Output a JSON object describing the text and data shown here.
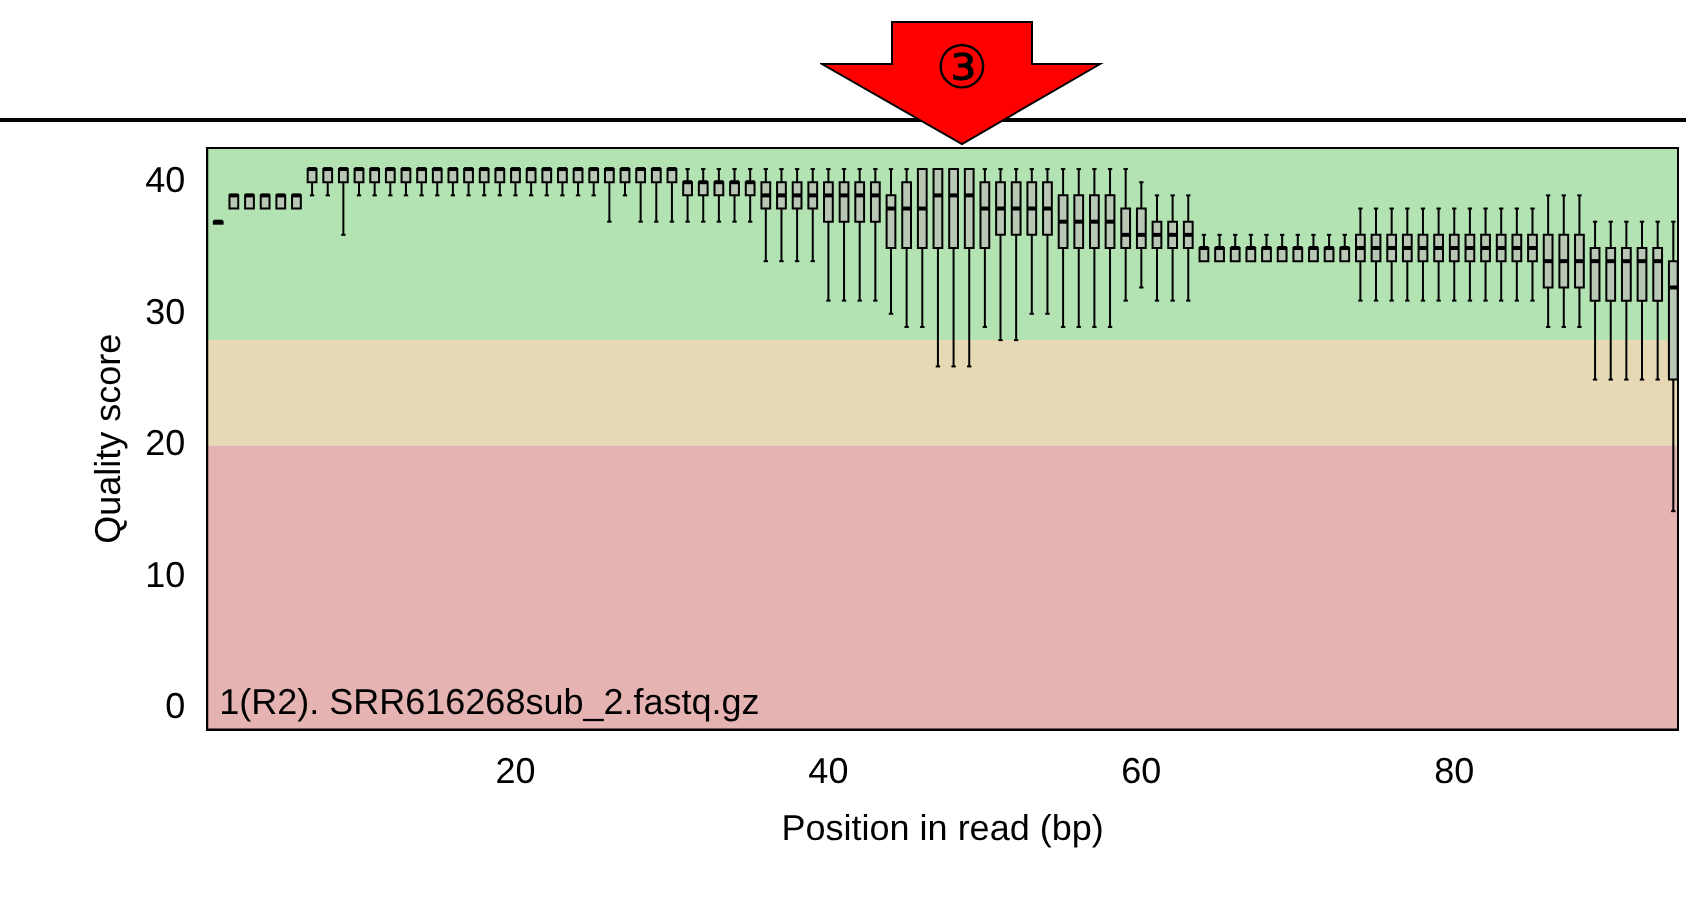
{
  "chart_data": {
    "type": "box",
    "xlabel": "Position in read (bp)",
    "ylabel": "Quality score",
    "annotations": [
      "③",
      "1(R2). SRR616268sub_2.fastq.gz"
    ],
    "x": [
      1,
      2,
      3,
      4,
      5,
      6,
      7,
      8,
      9,
      10,
      11,
      12,
      13,
      14,
      15,
      16,
      17,
      18,
      19,
      20,
      21,
      22,
      23,
      24,
      25,
      26,
      27,
      28,
      29,
      30,
      31,
      32,
      33,
      34,
      35,
      36,
      37,
      38,
      39,
      40,
      41,
      42,
      43,
      44,
      45,
      46,
      47,
      48,
      49,
      50,
      51,
      52,
      53,
      54,
      55,
      56,
      57,
      58,
      59,
      60,
      61,
      62,
      63,
      64,
      65,
      66,
      67,
      68,
      69,
      70,
      71,
      72,
      73,
      74,
      75,
      76,
      77,
      78,
      79,
      80,
      81,
      82,
      83,
      84,
      85,
      86,
      87,
      88,
      89,
      90,
      91,
      92,
      93,
      94
    ],
    "xlim": [
      0.3,
      94.3
    ],
    "xticks": [
      20,
      40,
      60,
      80
    ],
    "ylim": [
      -1.6,
      42.6
    ],
    "yticks": [
      0,
      10,
      20,
      30,
      40
    ],
    "grid": false,
    "legend": false,
    "bands": [
      {
        "axis": "y",
        "from": 28,
        "to": 42.6,
        "color": "#b3e3b3"
      },
      {
        "axis": "y",
        "from": 20,
        "to": 28,
        "color": "#e6d9b3"
      },
      {
        "axis": "y",
        "from": -1.6,
        "to": 20,
        "color": "#e6b3b3"
      }
    ],
    "series": [
      {
        "color": "#b8c8b4",
        "boxes": [
          {
            "low": 37,
            "q1": 37,
            "median": 37,
            "q3": 37,
            "high": 37
          },
          {
            "low": 38,
            "q1": 38,
            "median": 39,
            "q3": 39,
            "high": 39
          },
          {
            "low": 38,
            "q1": 38,
            "median": 39,
            "q3": 39,
            "high": 39
          },
          {
            "low": 38,
            "q1": 38,
            "median": 39,
            "q3": 39,
            "high": 39
          },
          {
            "low": 38,
            "q1": 38,
            "median": 39,
            "q3": 39,
            "high": 39
          },
          {
            "low": 38,
            "q1": 38,
            "median": 39,
            "q3": 39,
            "high": 39
          },
          {
            "low": 39,
            "q1": 40,
            "median": 41,
            "q3": 41,
            "high": 41
          },
          {
            "low": 39,
            "q1": 40,
            "median": 41,
            "q3": 41,
            "high": 41
          },
          {
            "low": 36,
            "q1": 40,
            "median": 41,
            "q3": 41,
            "high": 41
          },
          {
            "low": 39,
            "q1": 40,
            "median": 41,
            "q3": 41,
            "high": 41
          },
          {
            "low": 39,
            "q1": 40,
            "median": 41,
            "q3": 41,
            "high": 41
          },
          {
            "low": 39,
            "q1": 40,
            "median": 41,
            "q3": 41,
            "high": 41
          },
          {
            "low": 39,
            "q1": 40,
            "median": 41,
            "q3": 41,
            "high": 41
          },
          {
            "low": 39,
            "q1": 40,
            "median": 41,
            "q3": 41,
            "high": 41
          },
          {
            "low": 39,
            "q1": 40,
            "median": 41,
            "q3": 41,
            "high": 41
          },
          {
            "low": 39,
            "q1": 40,
            "median": 41,
            "q3": 41,
            "high": 41
          },
          {
            "low": 39,
            "q1": 40,
            "median": 41,
            "q3": 41,
            "high": 41
          },
          {
            "low": 39,
            "q1": 40,
            "median": 41,
            "q3": 41,
            "high": 41
          },
          {
            "low": 39,
            "q1": 40,
            "median": 41,
            "q3": 41,
            "high": 41
          },
          {
            "low": 39,
            "q1": 40,
            "median": 41,
            "q3": 41,
            "high": 41
          },
          {
            "low": 39,
            "q1": 40,
            "median": 41,
            "q3": 41,
            "high": 41
          },
          {
            "low": 39,
            "q1": 40,
            "median": 41,
            "q3": 41,
            "high": 41
          },
          {
            "low": 39,
            "q1": 40,
            "median": 41,
            "q3": 41,
            "high": 41
          },
          {
            "low": 39,
            "q1": 40,
            "median": 41,
            "q3": 41,
            "high": 41
          },
          {
            "low": 39,
            "q1": 40,
            "median": 41,
            "q3": 41,
            "high": 41
          },
          {
            "low": 37,
            "q1": 40,
            "median": 41,
            "q3": 41,
            "high": 41
          },
          {
            "low": 39,
            "q1": 40,
            "median": 41,
            "q3": 41,
            "high": 41
          },
          {
            "low": 37,
            "q1": 40,
            "median": 41,
            "q3": 41,
            "high": 41
          },
          {
            "low": 37,
            "q1": 40,
            "median": 41,
            "q3": 41,
            "high": 41
          },
          {
            "low": 37,
            "q1": 40,
            "median": 41,
            "q3": 41,
            "high": 41
          },
          {
            "low": 37,
            "q1": 39,
            "median": 40,
            "q3": 40,
            "high": 41
          },
          {
            "low": 37,
            "q1": 39,
            "median": 40,
            "q3": 40,
            "high": 41
          },
          {
            "low": 37,
            "q1": 39,
            "median": 40,
            "q3": 40,
            "high": 41
          },
          {
            "low": 37,
            "q1": 39,
            "median": 40,
            "q3": 40,
            "high": 41
          },
          {
            "low": 37,
            "q1": 39,
            "median": 40,
            "q3": 40,
            "high": 41
          },
          {
            "low": 34,
            "q1": 38,
            "median": 39,
            "q3": 40,
            "high": 41
          },
          {
            "low": 34,
            "q1": 38,
            "median": 39,
            "q3": 40,
            "high": 41
          },
          {
            "low": 34,
            "q1": 38,
            "median": 39,
            "q3": 40,
            "high": 41
          },
          {
            "low": 34,
            "q1": 38,
            "median": 39,
            "q3": 40,
            "high": 41
          },
          {
            "low": 31,
            "q1": 37,
            "median": 39,
            "q3": 40,
            "high": 41
          },
          {
            "low": 31,
            "q1": 37,
            "median": 39,
            "q3": 40,
            "high": 41
          },
          {
            "low": 31,
            "q1": 37,
            "median": 39,
            "q3": 40,
            "high": 41
          },
          {
            "low": 31,
            "q1": 37,
            "median": 39,
            "q3": 40,
            "high": 41
          },
          {
            "low": 30,
            "q1": 35,
            "median": 38,
            "q3": 39,
            "high": 41
          },
          {
            "low": 29,
            "q1": 35,
            "median": 38,
            "q3": 40,
            "high": 41
          },
          {
            "low": 29,
            "q1": 35,
            "median": 38,
            "q3": 41,
            "high": 41
          },
          {
            "low": 26,
            "q1": 35,
            "median": 39,
            "q3": 41,
            "high": 41
          },
          {
            "low": 26,
            "q1": 35,
            "median": 39,
            "q3": 41,
            "high": 41
          },
          {
            "low": 26,
            "q1": 35,
            "median": 39,
            "q3": 41,
            "high": 41
          },
          {
            "low": 29,
            "q1": 35,
            "median": 38,
            "q3": 40,
            "high": 41
          },
          {
            "low": 28,
            "q1": 36,
            "median": 38,
            "q3": 40,
            "high": 41
          },
          {
            "low": 28,
            "q1": 36,
            "median": 38,
            "q3": 40,
            "high": 41
          },
          {
            "low": 30,
            "q1": 36,
            "median": 38,
            "q3": 40,
            "high": 41
          },
          {
            "low": 30,
            "q1": 36,
            "median": 38,
            "q3": 40,
            "high": 41
          },
          {
            "low": 29,
            "q1": 35,
            "median": 37,
            "q3": 39,
            "high": 41
          },
          {
            "low": 29,
            "q1": 35,
            "median": 37,
            "q3": 39,
            "high": 41
          },
          {
            "low": 29,
            "q1": 35,
            "median": 37,
            "q3": 39,
            "high": 41
          },
          {
            "low": 29,
            "q1": 35,
            "median": 37,
            "q3": 39,
            "high": 41
          },
          {
            "low": 31,
            "q1": 35,
            "median": 36,
            "q3": 38,
            "high": 41
          },
          {
            "low": 32,
            "q1": 35,
            "median": 36,
            "q3": 38,
            "high": 40
          },
          {
            "low": 31,
            "q1": 35,
            "median": 36,
            "q3": 37,
            "high": 39
          },
          {
            "low": 31,
            "q1": 35,
            "median": 36,
            "q3": 37,
            "high": 39
          },
          {
            "low": 31,
            "q1": 35,
            "median": 36,
            "q3": 37,
            "high": 39
          },
          {
            "low": 34,
            "q1": 34,
            "median": 35,
            "q3": 35,
            "high": 36
          },
          {
            "low": 34,
            "q1": 34,
            "median": 35,
            "q3": 35,
            "high": 36
          },
          {
            "low": 34,
            "q1": 34,
            "median": 35,
            "q3": 35,
            "high": 36
          },
          {
            "low": 34,
            "q1": 34,
            "median": 35,
            "q3": 35,
            "high": 36
          },
          {
            "low": 34,
            "q1": 34,
            "median": 35,
            "q3": 35,
            "high": 36
          },
          {
            "low": 34,
            "q1": 34,
            "median": 35,
            "q3": 35,
            "high": 36
          },
          {
            "low": 34,
            "q1": 34,
            "median": 35,
            "q3": 35,
            "high": 36
          },
          {
            "low": 34,
            "q1": 34,
            "median": 35,
            "q3": 35,
            "high": 36
          },
          {
            "low": 34,
            "q1": 34,
            "median": 35,
            "q3": 35,
            "high": 36
          },
          {
            "low": 34,
            "q1": 34,
            "median": 35,
            "q3": 35,
            "high": 36
          },
          {
            "low": 31,
            "q1": 34,
            "median": 35,
            "q3": 36,
            "high": 38
          },
          {
            "low": 31,
            "q1": 34,
            "median": 35,
            "q3": 36,
            "high": 38
          },
          {
            "low": 31,
            "q1": 34,
            "median": 35,
            "q3": 36,
            "high": 38
          },
          {
            "low": 31,
            "q1": 34,
            "median": 35,
            "q3": 36,
            "high": 38
          },
          {
            "low": 31,
            "q1": 34,
            "median": 35,
            "q3": 36,
            "high": 38
          },
          {
            "low": 31,
            "q1": 34,
            "median": 35,
            "q3": 36,
            "high": 38
          },
          {
            "low": 31,
            "q1": 34,
            "median": 35,
            "q3": 36,
            "high": 38
          },
          {
            "low": 31,
            "q1": 34,
            "median": 35,
            "q3": 36,
            "high": 38
          },
          {
            "low": 31,
            "q1": 34,
            "median": 35,
            "q3": 36,
            "high": 38
          },
          {
            "low": 31,
            "q1": 34,
            "median": 35,
            "q3": 36,
            "high": 38
          },
          {
            "low": 31,
            "q1": 34,
            "median": 35,
            "q3": 36,
            "high": 38
          },
          {
            "low": 31,
            "q1": 34,
            "median": 35,
            "q3": 36,
            "high": 38
          },
          {
            "low": 29,
            "q1": 32,
            "median": 34,
            "q3": 36,
            "high": 39
          },
          {
            "low": 29,
            "q1": 32,
            "median": 34,
            "q3": 36,
            "high": 39
          },
          {
            "low": 29,
            "q1": 32,
            "median": 34,
            "q3": 36,
            "high": 39
          },
          {
            "low": 25,
            "q1": 31,
            "median": 34,
            "q3": 35,
            "high": 37
          },
          {
            "low": 25,
            "q1": 31,
            "median": 34,
            "q3": 35,
            "high": 37
          },
          {
            "low": 25,
            "q1": 31,
            "median": 34,
            "q3": 35,
            "high": 37
          },
          {
            "low": 25,
            "q1": 31,
            "median": 34,
            "q3": 35,
            "high": 37
          },
          {
            "low": 25,
            "q1": 31,
            "median": 34,
            "q3": 35,
            "high": 37
          },
          {
            "low": 15,
            "q1": 25,
            "median": 32,
            "q3": 34,
            "high": 37
          }
        ]
      }
    ]
  }
}
